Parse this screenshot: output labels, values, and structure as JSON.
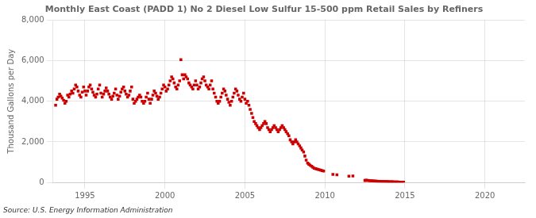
{
  "chart_data": {
    "type": "scatter",
    "title": "Monthly East Coast (PADD 1) No 2 Diesel Low Sulfur 15-500 ppm Retail Sales by Refiners",
    "ylabel": "Thousand Gallons per Day",
    "source": "Source: U.S. Energy Information Administration",
    "color": "#cc0000",
    "marker": "square",
    "grid": true,
    "xlim": [
      1993.0,
      2022.5
    ],
    "xticks": [
      1995,
      2000,
      2005,
      2010,
      2015,
      2020
    ],
    "ylim": [
      0,
      8000
    ],
    "yticks": [
      0,
      {
        "value": 2000,
        "label": "2,000"
      },
      {
        "value": 4000,
        "label": "4,000"
      },
      {
        "value": 6000,
        "label": "6,000"
      },
      {
        "value": 8000,
        "label": "8,000"
      }
    ],
    "x": [
      1993.17,
      1993.25,
      1993.33,
      1993.42,
      1993.5,
      1993.58,
      1993.67,
      1993.75,
      1993.83,
      1993.92,
      1994.0,
      1994.08,
      1994.17,
      1994.25,
      1994.33,
      1994.42,
      1994.5,
      1994.58,
      1994.67,
      1994.75,
      1994.83,
      1994.92,
      1995.0,
      1995.08,
      1995.17,
      1995.25,
      1995.33,
      1995.42,
      1995.5,
      1995.58,
      1995.67,
      1995.75,
      1995.83,
      1995.92,
      1996.0,
      1996.08,
      1996.17,
      1996.25,
      1996.33,
      1996.42,
      1996.5,
      1996.58,
      1996.67,
      1996.75,
      1996.83,
      1996.92,
      1997.0,
      1997.08,
      1997.17,
      1997.25,
      1997.33,
      1997.42,
      1997.5,
      1997.58,
      1997.67,
      1997.75,
      1997.83,
      1997.92,
      1998.0,
      1998.08,
      1998.17,
      1998.25,
      1998.33,
      1998.42,
      1998.5,
      1998.58,
      1998.67,
      1998.75,
      1998.83,
      1998.92,
      1999.0,
      1999.08,
      1999.17,
      1999.25,
      1999.33,
      1999.42,
      1999.5,
      1999.58,
      1999.67,
      1999.75,
      1999.83,
      1999.92,
      2000.0,
      2000.08,
      2000.17,
      2000.25,
      2000.33,
      2000.42,
      2000.5,
      2000.58,
      2000.67,
      2000.75,
      2000.83,
      2000.92,
      2001.0,
      2001.08,
      2001.17,
      2001.25,
      2001.33,
      2001.42,
      2001.5,
      2001.58,
      2001.67,
      2001.75,
      2001.83,
      2001.92,
      2002.0,
      2002.08,
      2002.17,
      2002.25,
      2002.33,
      2002.42,
      2002.5,
      2002.58,
      2002.67,
      2002.75,
      2002.83,
      2002.92,
      2003.0,
      2003.08,
      2003.17,
      2003.25,
      2003.33,
      2003.42,
      2003.5,
      2003.58,
      2003.67,
      2003.75,
      2003.83,
      2003.92,
      2004.0,
      2004.08,
      2004.17,
      2004.25,
      2004.33,
      2004.42,
      2004.5,
      2004.58,
      2004.67,
      2004.75,
      2004.83,
      2004.92,
      2005.0,
      2005.08,
      2005.17,
      2005.25,
      2005.33,
      2005.42,
      2005.5,
      2005.58,
      2005.67,
      2005.75,
      2005.83,
      2005.92,
      2006.0,
      2006.08,
      2006.17,
      2006.25,
      2006.33,
      2006.42,
      2006.5,
      2006.58,
      2006.67,
      2006.75,
      2006.83,
      2006.92,
      2007.0,
      2007.08,
      2007.17,
      2007.25,
      2007.33,
      2007.42,
      2007.5,
      2007.58,
      2007.67,
      2007.75,
      2007.83,
      2007.92,
      2008.0,
      2008.08,
      2008.17,
      2008.25,
      2008.33,
      2008.42,
      2008.5,
      2008.58,
      2008.67,
      2008.75,
      2008.83,
      2008.92,
      2009.0,
      2009.08,
      2009.17,
      2009.25,
      2009.33,
      2009.42,
      2009.5,
      2009.58,
      2009.67,
      2009.75,
      2009.83,
      2009.92,
      2010.5,
      2010.75,
      2011.5,
      2011.75,
      2012.5,
      2012.58,
      2012.67,
      2012.75,
      2012.83,
      2012.92,
      2013.0,
      2013.08,
      2013.17,
      2013.25,
      2013.33,
      2013.42,
      2013.5,
      2013.58,
      2013.67,
      2013.75,
      2013.83,
      2013.92,
      2014.0,
      2014.08,
      2014.17,
      2014.25,
      2014.33,
      2014.42,
      2014.5,
      2014.58,
      2014.67,
      2014.75,
      2014.83,
      2014.92
    ],
    "values": [
      3800,
      4100,
      4200,
      4350,
      4250,
      4150,
      4050,
      3900,
      4000,
      4300,
      4200,
      4350,
      4500,
      4400,
      4600,
      4800,
      4700,
      4500,
      4300,
      4200,
      4450,
      4700,
      4500,
      4300,
      4500,
      4700,
      4800,
      4600,
      4450,
      4300,
      4200,
      4350,
      4600,
      4800,
      4400,
      4200,
      4350,
      4500,
      4650,
      4500,
      4350,
      4200,
      4100,
      4250,
      4400,
      4600,
      4300,
      4100,
      4250,
      4450,
      4600,
      4700,
      4500,
      4350,
      4200,
      4300,
      4500,
      4700,
      4100,
      3900,
      4000,
      4100,
      4200,
      4300,
      4200,
      4000,
      3900,
      4000,
      4200,
      4400,
      4100,
      3900,
      4100,
      4300,
      4500,
      4400,
      4250,
      4100,
      4200,
      4400,
      4600,
      4800,
      4700,
      4500,
      4600,
      4800,
      5000,
      5200,
      5100,
      4900,
      4700,
      4600,
      4800,
      5000,
      6050,
      5300,
      5100,
      5300,
      5200,
      5100,
      4900,
      4800,
      4700,
      4600,
      4800,
      5000,
      4800,
      4600,
      4700,
      4900,
      5100,
      5200,
      5000,
      4800,
      4700,
      4600,
      4800,
      5000,
      4600,
      4400,
      4200,
      4000,
      3900,
      4000,
      4200,
      4400,
      4600,
      4500,
      4300,
      4100,
      3950,
      3800,
      4000,
      4200,
      4400,
      4600,
      4500,
      4300,
      4100,
      4000,
      4200,
      4400,
      4100,
      3900,
      4000,
      3800,
      3600,
      3400,
      3200,
      3000,
      2900,
      2800,
      2700,
      2600,
      2700,
      2800,
      2900,
      3000,
      2900,
      2700,
      2600,
      2500,
      2600,
      2700,
      2800,
      2700,
      2600,
      2500,
      2600,
      2700,
      2800,
      2700,
      2600,
      2500,
      2400,
      2300,
      2100,
      2000,
      1900,
      2000,
      2100,
      2000,
      1900,
      1800,
      1700,
      1600,
      1500,
      1300,
      1100,
      950,
      900,
      850,
      800,
      750,
      700,
      680,
      660,
      640,
      620,
      600,
      580,
      560,
      400,
      380,
      310,
      320,
      100,
      110,
      105,
      95,
      90,
      85,
      80,
      75,
      70,
      65,
      60,
      58,
      55,
      52,
      50,
      48,
      45,
      42,
      40,
      38,
      35,
      32,
      30,
      28,
      25,
      22,
      20,
      18,
      15,
      12
    ]
  }
}
